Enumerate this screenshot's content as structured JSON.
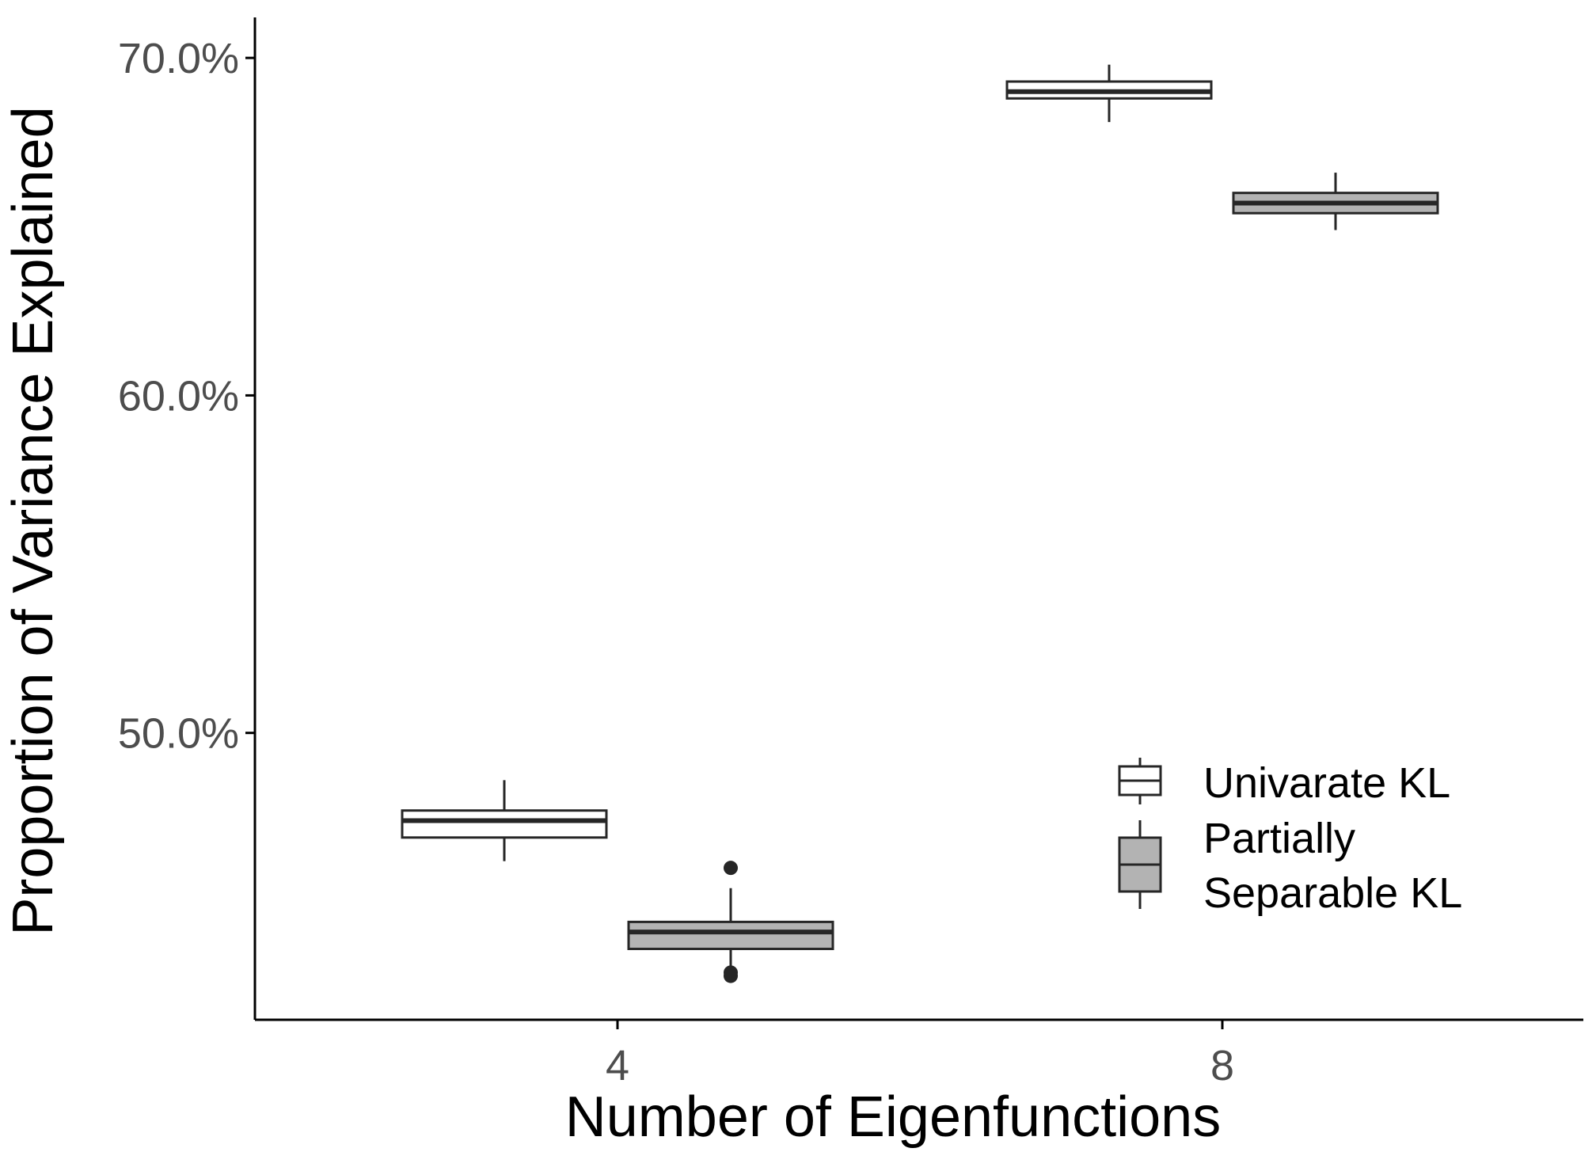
{
  "chart_data": {
    "type": "boxplot",
    "xlabel": "Number of Eigenfunctions",
    "ylabel": "Proportion of Variance Explained",
    "categories": [
      "4",
      "8"
    ],
    "ylim": [
      41.5,
      71.2
    ],
    "yticks": [
      {
        "value": 50,
        "label": "50.0%"
      },
      {
        "value": 60,
        "label": "60.0%"
      },
      {
        "value": 70,
        "label": "70.0%"
      }
    ],
    "grid": false,
    "legend_position": "bottom-right",
    "series": [
      {
        "name": "Univarate KL",
        "fill": "#ffffff",
        "boxes": [
          {
            "category": "4",
            "min": 46.2,
            "q1": 46.9,
            "median": 47.4,
            "q3": 47.7,
            "max": 48.6,
            "outliers": []
          },
          {
            "category": "8",
            "min": 68.1,
            "q1": 68.8,
            "median": 69.0,
            "q3": 69.3,
            "max": 69.8,
            "outliers": []
          }
        ]
      },
      {
        "name": "Partially Separable KL",
        "name_lines": [
          "Partially",
          "Separable KL"
        ],
        "fill": "#b3b3b3",
        "boxes": [
          {
            "category": "4",
            "min": 42.9,
            "q1": 43.6,
            "median": 44.1,
            "q3": 44.4,
            "max": 45.4,
            "outliers": [
              46.0,
              42.8,
              42.9
            ]
          },
          {
            "category": "8",
            "min": 64.9,
            "q1": 65.4,
            "median": 65.7,
            "q3": 66.0,
            "max": 66.6,
            "outliers": []
          }
        ]
      }
    ]
  },
  "colors": {
    "axis": "#000000",
    "tick_text": "#4d4d4d",
    "box_stroke": "#262626"
  }
}
